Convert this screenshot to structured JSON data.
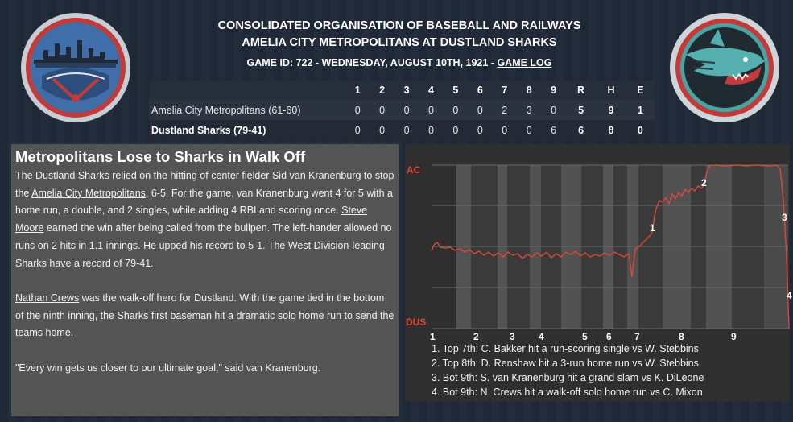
{
  "header": {
    "league": "CONSOLIDATED ORGANISATION OF BASEBALL AND RAILWAYS",
    "matchup": "AMELIA CITY METROPOLITANS AT DUSTLAND SHARKS",
    "gameinfo": "GAME ID: 722 - WEDNESDAY, AUGUST 10TH, 1921 - ",
    "gamelog_link": "GAME LOG"
  },
  "boxscore": {
    "headers": [
      "",
      "1",
      "2",
      "3",
      "4",
      "5",
      "6",
      "7",
      "8",
      "9",
      "R",
      "H",
      "E"
    ],
    "rows": [
      {
        "team": "Amelia City Metropolitans (61-60)",
        "innings": [
          "0",
          "0",
          "0",
          "0",
          "0",
          "0",
          "2",
          "3",
          "0"
        ],
        "r": "5",
        "h": "9",
        "e": "1"
      },
      {
        "team": "Dustland Sharks (79-41)",
        "innings": [
          "0",
          "0",
          "0",
          "0",
          "0",
          "0",
          "0",
          "0",
          "6"
        ],
        "r": "6",
        "h": "8",
        "e": "0"
      }
    ]
  },
  "story": {
    "headline": "Metropolitans Lose to Sharks in Walk Off",
    "p1": {
      "s1": "The ",
      "l1": "Dustland Sharks",
      "s2": " relied on the hitting of center fielder ",
      "l2": "Sid van Kranenburg",
      "s3": " to stop the ",
      "l3": "Amelia City Metropolitans",
      "s4": ", 6-5. For the game, van Kranenburg went 4 for 5 with a home run, a double, and 2 singles, while adding 4 RBI and scoring once. ",
      "l4": "Steve Moore",
      "s5": " earned the win after being called from the bullpen. The left-hander allowed no runs on 2 hits in 1.1 innings. He upped his record to 5-1. The West Division-leading Sharks have a record of 79-41."
    },
    "p2": {
      "l1": "Nathan Crews",
      "s1": " was the walk-off hero for Dustland. With the game tied in the bottom of the ninth inning, the Sharks first baseman hit a dramatic solo home run to send the teams home."
    },
    "p3": "\"Every win gets us closer to our ultimate goal,\" said van Kranenburg."
  },
  "chart_data": {
    "type": "line",
    "ylabels": {
      "top": "AC",
      "bottom": "DUS"
    },
    "x_ticks": [
      "1",
      "2",
      "3",
      "4",
      "5",
      "6",
      "7",
      "8",
      "9"
    ],
    "markers": [
      "1",
      "2",
      "3",
      "4"
    ],
    "line_color": "#d9483b",
    "label_color": "#e0442f"
  },
  "legend": [
    "1. Top 7th: C. Bakker hit a run-scoring single vs W. Stebbins",
    "2. Top 8th: D. Renshaw hit a 3-run home run vs W. Stebbins",
    "3. Bot 9th: S. van Kranenburg hit a grand slam vs K. DiLeone",
    "4. Bot 9th: N. Crews hit a walk-off solo home run vs C. Mixon"
  ]
}
